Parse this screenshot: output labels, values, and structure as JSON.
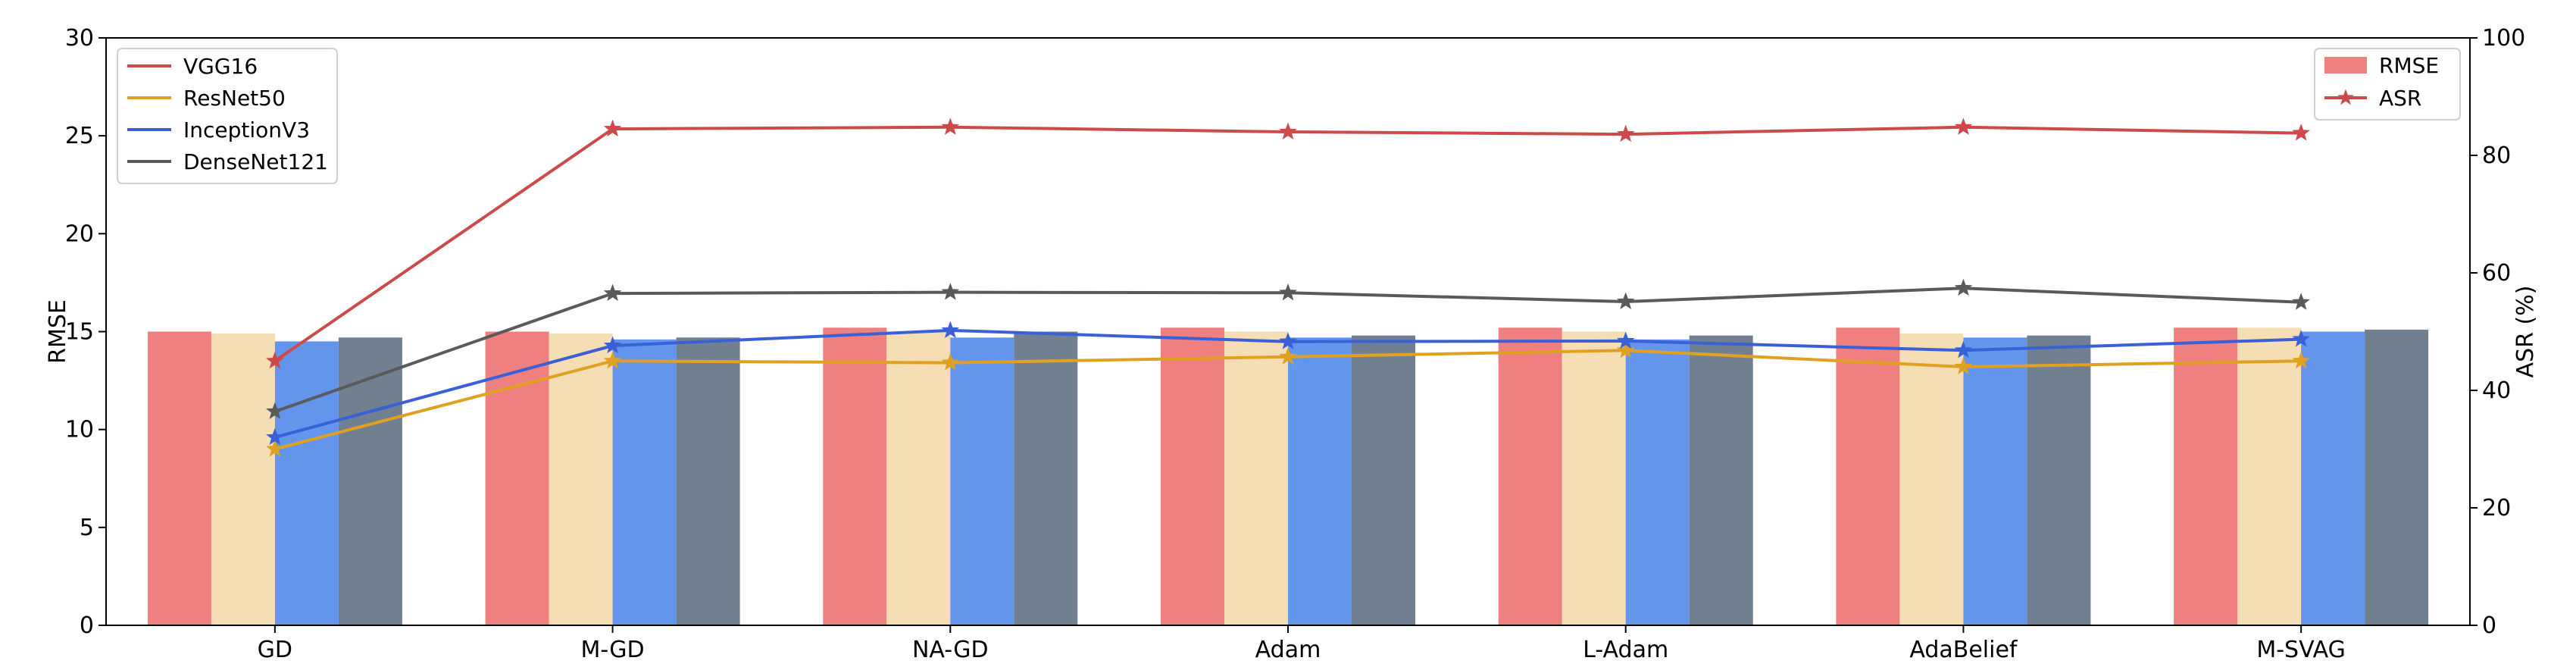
{
  "chart_data": {
    "type": "bar+line",
    "categories": [
      "GD",
      "M-GD",
      "NA-GD",
      "Adam",
      "L-Adam",
      "AdaBelief",
      "M-SVAG"
    ],
    "ylabel_left": "RMSE",
    "ylabel_right": "ASR (%)",
    "ylim_left": [
      0,
      30
    ],
    "ylim_right": [
      0,
      100
    ],
    "yticks_left": [
      "0",
      "5",
      "10",
      "15",
      "20",
      "25",
      "30"
    ],
    "yticks_right": [
      "0",
      "20",
      "40",
      "60",
      "80",
      "100"
    ],
    "grid": false,
    "bar_series": [
      {
        "model": "VGG16",
        "color": "#f08080",
        "values": [
          15.0,
          15.0,
          15.2,
          15.2,
          15.2,
          15.2,
          15.2
        ]
      },
      {
        "model": "ResNet50",
        "color": "#f5deb3",
        "values": [
          14.9,
          14.9,
          15.0,
          15.0,
          15.0,
          14.9,
          15.2
        ]
      },
      {
        "model": "InceptionV3",
        "color": "#6495ed",
        "values": [
          14.5,
          14.6,
          14.7,
          14.7,
          14.6,
          14.7,
          15.0
        ]
      },
      {
        "model": "DenseNet121",
        "color": "#708090",
        "values": [
          14.7,
          14.7,
          15.0,
          14.8,
          14.8,
          14.8,
          15.1
        ]
      }
    ],
    "line_series": [
      {
        "name": "VGG16",
        "color": "#cd4a4a",
        "values": [
          45.0,
          84.5,
          84.8,
          84.0,
          83.6,
          84.8,
          83.8
        ]
      },
      {
        "name": "ResNet50",
        "color": "#e0a020",
        "values": [
          30.0,
          45.0,
          44.7,
          45.7,
          46.8,
          44.0,
          45.0
        ]
      },
      {
        "name": "InceptionV3",
        "color": "#3a60d8",
        "values": [
          32.0,
          47.6,
          50.2,
          48.3,
          48.4,
          46.8,
          48.7
        ]
      },
      {
        "name": "DenseNet121",
        "color": "#5a5a5a",
        "values": [
          36.4,
          56.5,
          56.7,
          56.6,
          55.1,
          57.4,
          55.0
        ]
      }
    ],
    "legend_left": {
      "placement": "upper-left",
      "entries": [
        "VGG16",
        "ResNet50",
        "InceptionV3",
        "DenseNet121"
      ]
    },
    "legend_right": {
      "placement": "upper-right",
      "entries": [
        {
          "label": "RMSE",
          "marker": "bar",
          "color": "#f08080"
        },
        {
          "label": "ASR",
          "marker": "line-star",
          "color": "#cd4a4a"
        }
      ]
    }
  }
}
